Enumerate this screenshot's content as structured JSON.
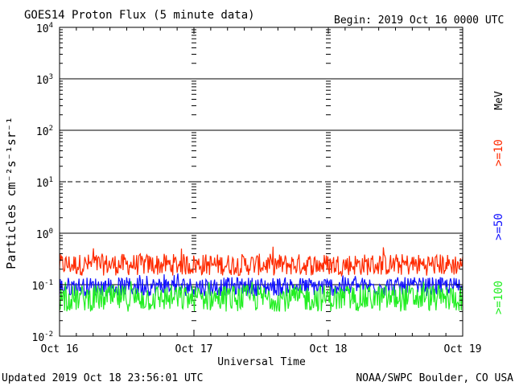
{
  "header": {
    "title": "GOES14 Proton Flux (5 minute data)",
    "begin": "Begin: 2019 Oct 16 0000 UTC"
  },
  "footer": {
    "updated": "Updated 2019 Oct 18 23:56:01 UTC",
    "credit": "NOAA/SWPC Boulder, CO USA"
  },
  "chart_data": {
    "type": "line",
    "title": "GOES14 Proton Flux (5 minute data)",
    "xlabel": "Universal Time",
    "ylabel": "Particles cm⁻²s⁻¹sr⁻¹",
    "yscale": "log",
    "ylim": [
      0.01,
      10000
    ],
    "xlim": [
      0,
      3
    ],
    "x_ticks": [
      {
        "x": 0,
        "label": "Oct 16"
      },
      {
        "x": 1,
        "label": "Oct 17"
      },
      {
        "x": 2,
        "label": "Oct 18"
      },
      {
        "x": 3,
        "label": "Oct 19"
      }
    ],
    "y_ticks": [
      {
        "base": "10",
        "exp": "-2",
        "value": 0.01
      },
      {
        "base": "10",
        "exp": "-1",
        "value": 0.1
      },
      {
        "base": "10",
        "exp": "0",
        "value": 1
      },
      {
        "base": "10",
        "exp": "1",
        "value": 10
      },
      {
        "base": "10",
        "exp": "2",
        "value": 100
      },
      {
        "base": "10",
        "exp": "3",
        "value": 1000
      },
      {
        "base": "10",
        "exp": "4",
        "value": 10000
      }
    ],
    "solid_gridlines": [
      0.1,
      1,
      100,
      1000
    ],
    "dashed_gridlines": [
      10
    ],
    "unit_label": "MeV",
    "series": [
      {
        "name": ">=10",
        "color": "#ff2a00",
        "baseline": 0.2,
        "spread_low": 0.15,
        "spread_high": 0.4,
        "peak": 0.55
      },
      {
        "name": ">=50",
        "color": "#1010ff",
        "baseline": 0.085,
        "spread_low": 0.06,
        "spread_high": 0.14,
        "peak": 0.17
      },
      {
        "name": ">=100",
        "color": "#22ee22",
        "baseline": 0.045,
        "spread_low": 0.03,
        "spread_high": 0.1,
        "peak": 0.13
      }
    ]
  }
}
